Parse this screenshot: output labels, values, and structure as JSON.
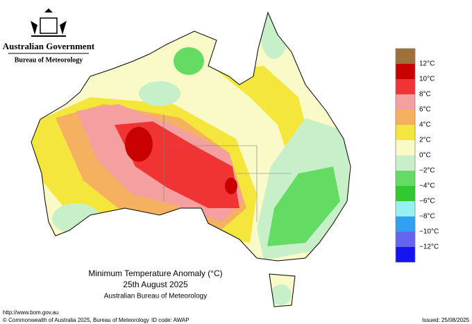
{
  "header": {
    "government": "Australian Government",
    "agency": "Bureau of Meteorology"
  },
  "title": {
    "line1": "Minimum Temperature Anomaly (°C)",
    "line2": "25th August 2025",
    "line3": "Australian Bureau of Meteorology"
  },
  "legend": {
    "labels": [
      "12°C",
      "10°C",
      "8°C",
      "6°C",
      "4°C",
      "2°C",
      "0°C",
      "−2°C",
      "−4°C",
      "−6°C",
      "−8°C",
      "−10°C",
      "−12°C"
    ],
    "colors": [
      "#a0703a",
      "#c80000",
      "#f03434",
      "#f5a0a0",
      "#f5b060",
      "#f5e63c",
      "#fafac8",
      "#c8f0c8",
      "#64dc64",
      "#32c832",
      "#96f0f0",
      "#32a0f0",
      "#6464f0",
      "#1414f0"
    ]
  },
  "footer": {
    "url": "http://www.bom.gov.au",
    "copyright": "© Commonwealth of Australia 2025, Bureau of Meteorology",
    "id_code": "ID code: AWAP",
    "issued": "Issued: 25/08/2025"
  }
}
